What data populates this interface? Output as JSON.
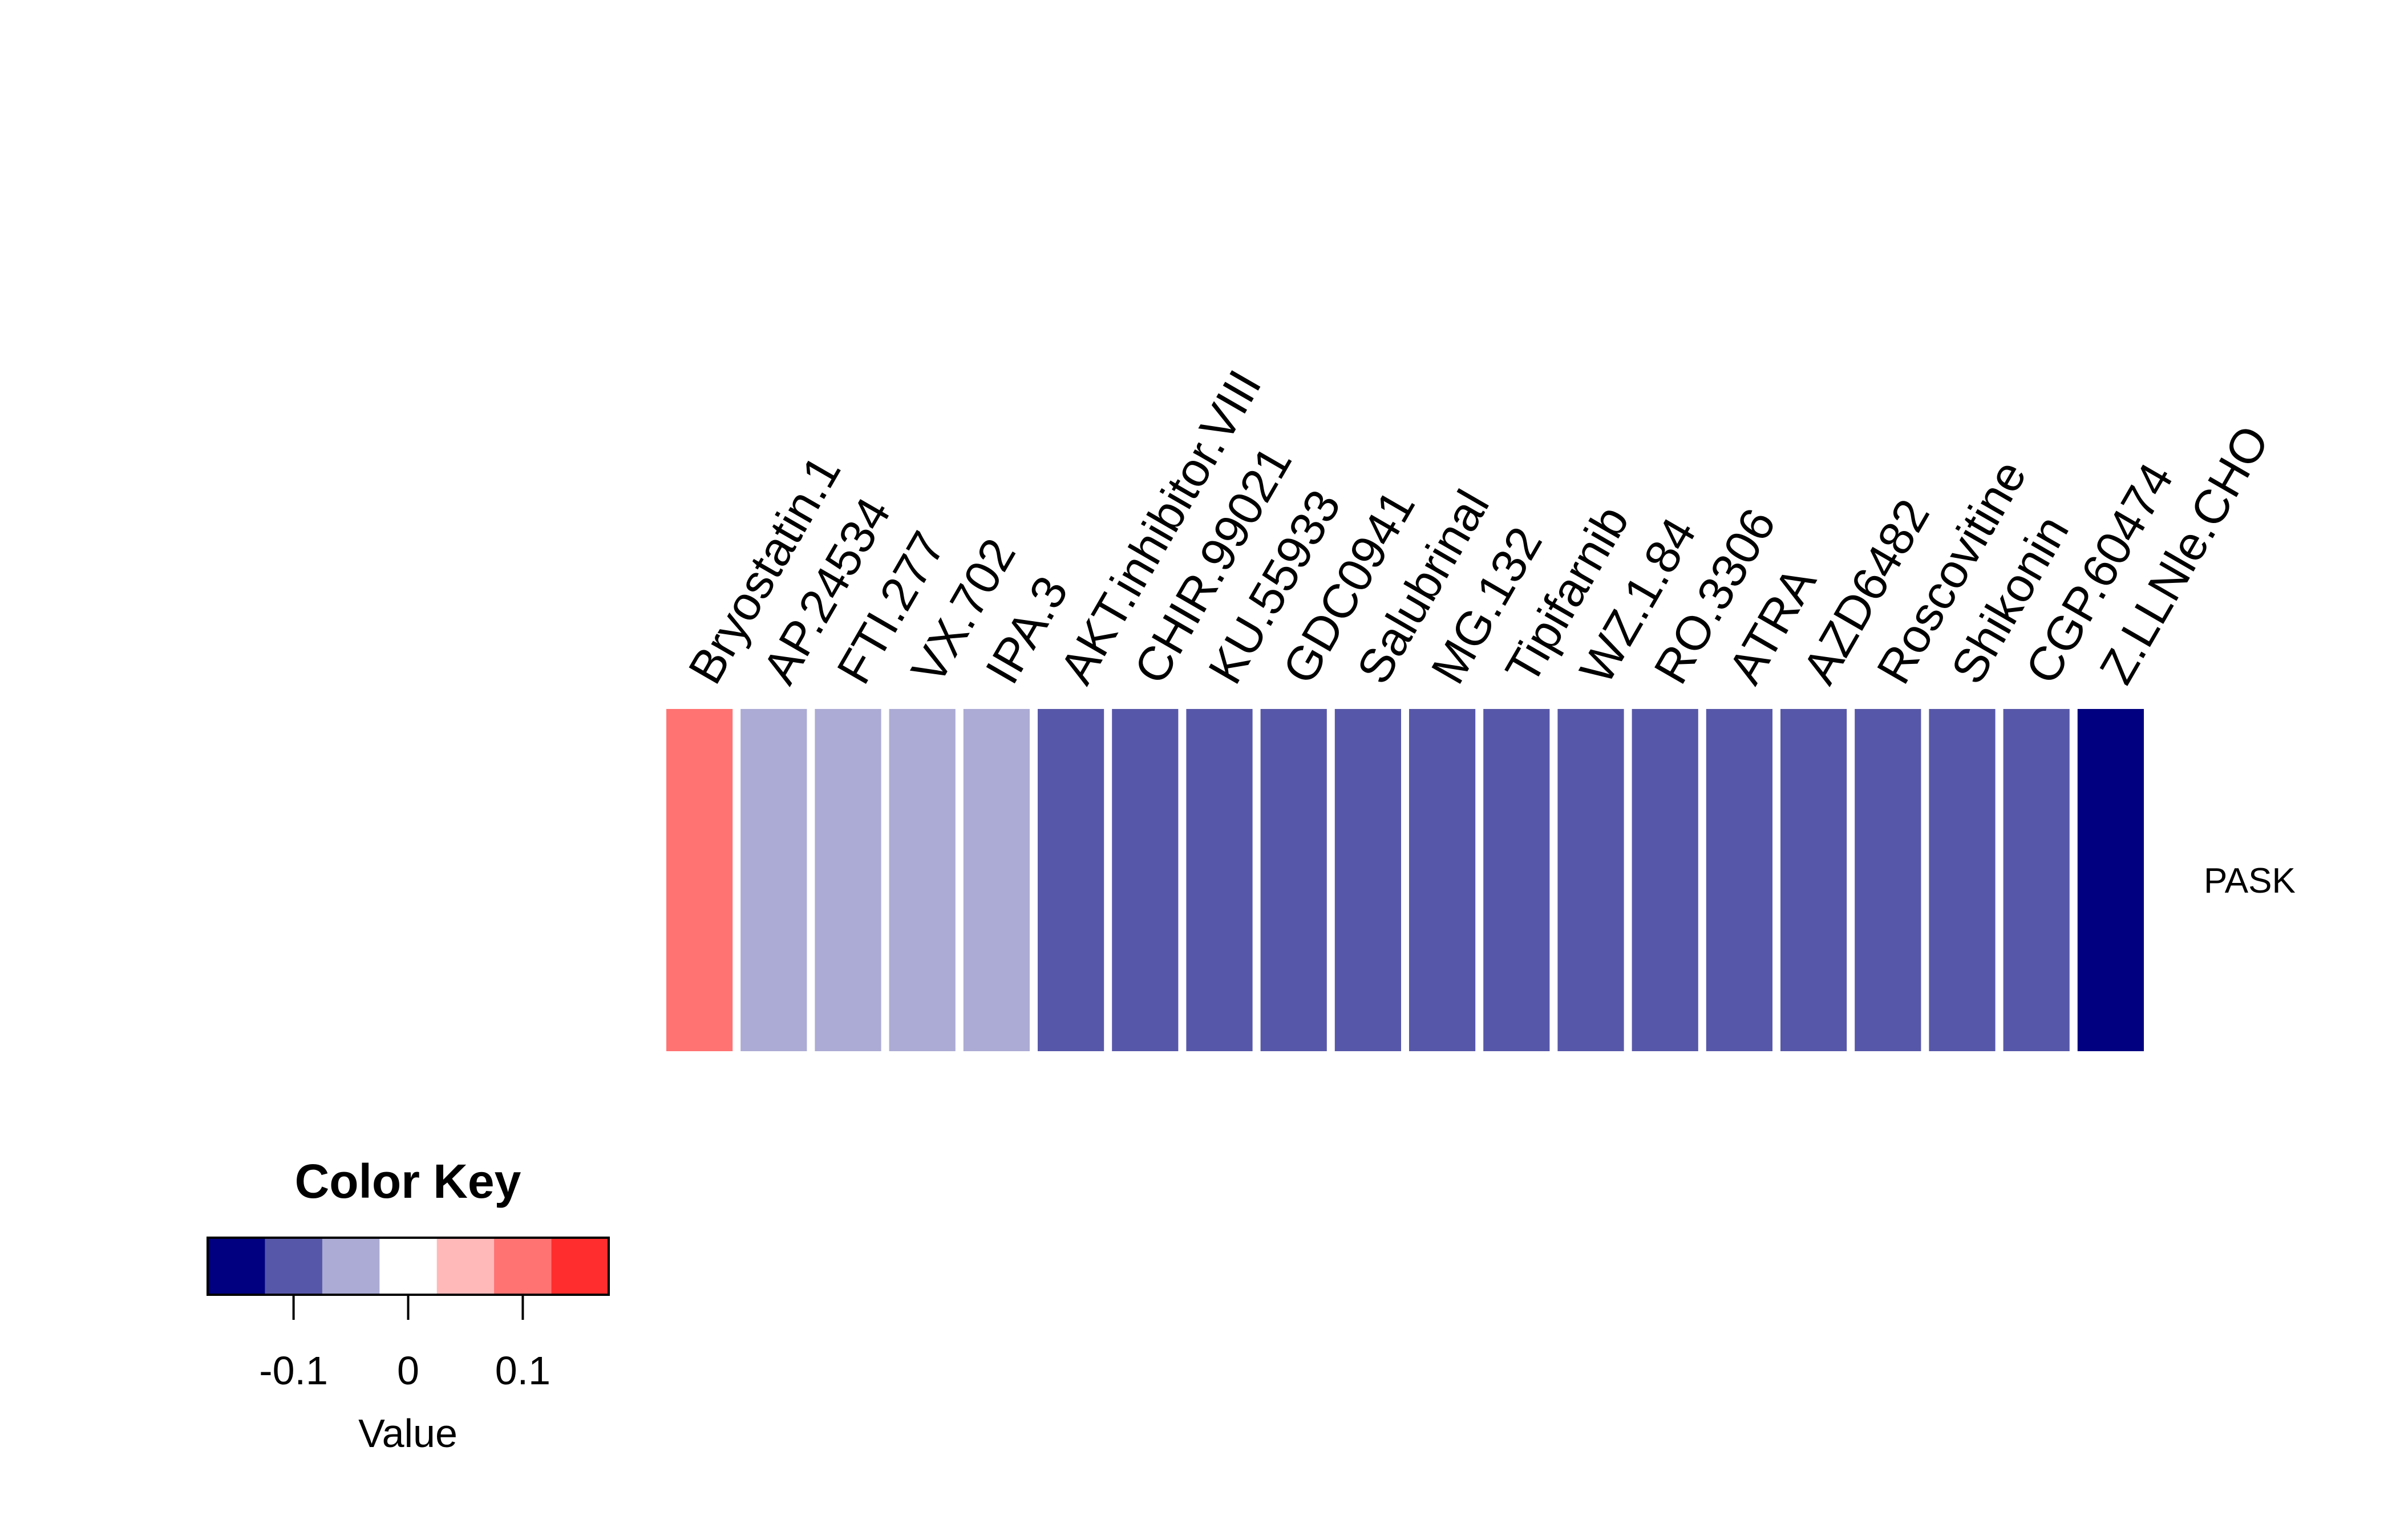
{
  "chart_data": {
    "type": "heatmap",
    "rows": [
      "PASK"
    ],
    "columns": [
      "Bryostatin.1",
      "AP.24534",
      "FTI.277",
      "VX.702",
      "IPA.3",
      "AKT.inhibitor.VIII",
      "CHIR.99021",
      "KU.55933",
      "GDC0941",
      "Salubrinal",
      "MG.132",
      "Tipifarnib",
      "WZ.1.84",
      "RO.3306",
      "ATRA",
      "AZD6482",
      "Roscovitine",
      "Shikonin",
      "CGP.60474",
      "Z.LLNle.CHO"
    ],
    "values": [
      [
        0.1,
        -0.05,
        -0.05,
        -0.05,
        -0.05,
        -0.1,
        -0.1,
        -0.1,
        -0.1,
        -0.1,
        -0.1,
        -0.1,
        -0.1,
        -0.1,
        -0.1,
        -0.1,
        -0.1,
        -0.1,
        -0.1,
        -0.15
      ]
    ],
    "colors": [
      "#000080",
      "#5757AA",
      "#ABABD5",
      "#FFFFFF",
      "#FFB9B9",
      "#FF7373",
      "#FF2D2D"
    ],
    "color_breaks": [
      -0.175,
      -0.125,
      -0.075,
      -0.025,
      0.025,
      0.075,
      0.125,
      0.175
    ],
    "legend": {
      "title": "Color Key",
      "xlabel": "Value",
      "ticks": [
        {
          "value": -0.1,
          "label": "-0.1"
        },
        {
          "value": 0,
          "label": "0"
        },
        {
          "value": 0.1,
          "label": "0.1"
        }
      ],
      "placement": "bottom-left"
    }
  }
}
